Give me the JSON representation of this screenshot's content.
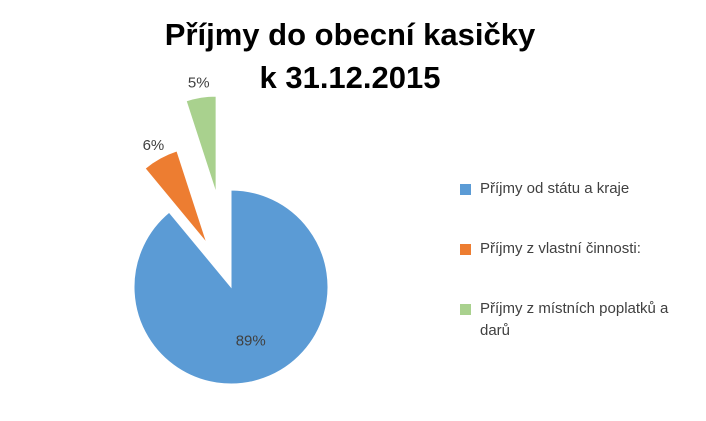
{
  "chart_data": {
    "type": "pie",
    "title": [
      "Příjmy do obecní kasičky",
      "k 31.12.2015"
    ],
    "categories": [
      "Příjmy od státu a kraje",
      "Příjmy z vlastní činnosti:",
      "Příjmy z místních poplatků a darů"
    ],
    "values": [
      89,
      6,
      5
    ],
    "value_labels": [
      "89%",
      "6%",
      "5%"
    ],
    "colors": [
      "#5b9bd5",
      "#ed7d31",
      "#a9d18e"
    ],
    "legend": "right"
  }
}
